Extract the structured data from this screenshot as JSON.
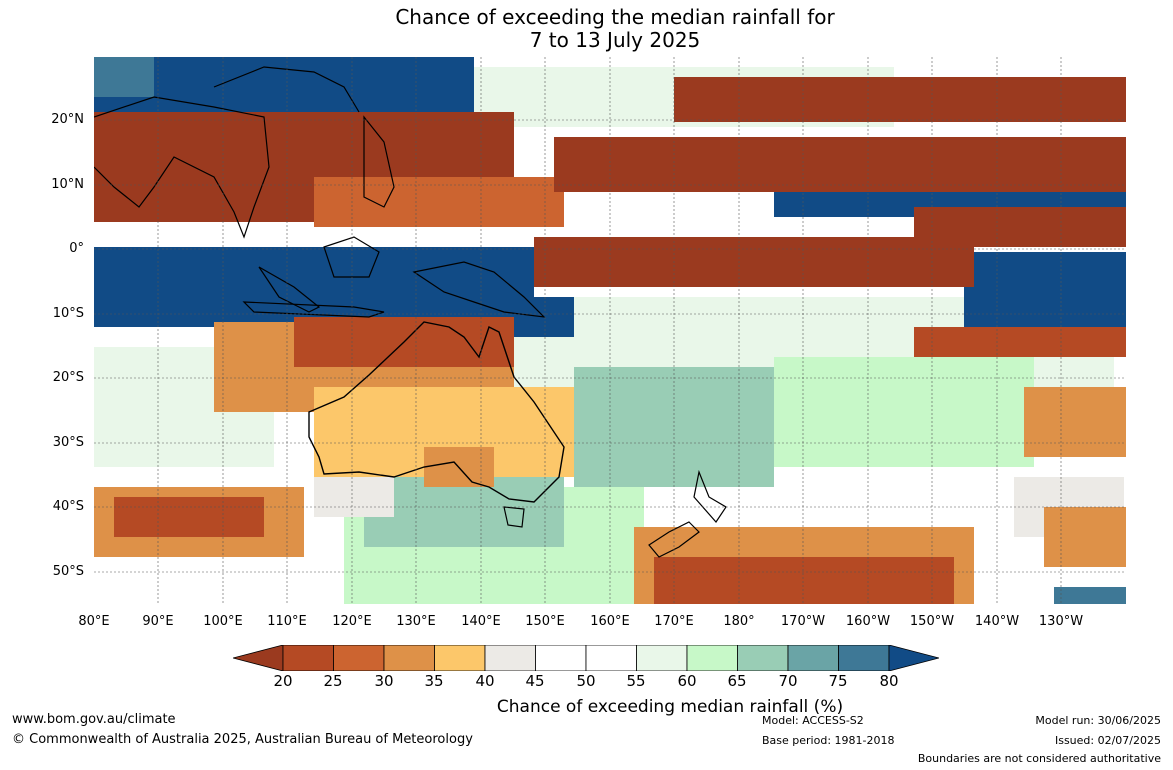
{
  "title": {
    "line1": "Chance of exceeding the median rainfall for",
    "line2": "7 to 13 July 2025"
  },
  "lat_labels": [
    "20°N",
    "10°N",
    "0°",
    "10°S",
    "20°S",
    "30°S",
    "40°S",
    "50°S"
  ],
  "lon_labels": [
    "80°E",
    "90°E",
    "100°E",
    "110°E",
    "120°E",
    "130°E",
    "140°E",
    "150°E",
    "160°E",
    "170°E",
    "180°",
    "170°W",
    "160°W",
    "150°W",
    "140°W",
    "130°W"
  ],
  "colorbar": {
    "ticks": [
      "20",
      "25",
      "30",
      "35",
      "40",
      "45",
      "50",
      "55",
      "60",
      "65",
      "70",
      "75",
      "80"
    ],
    "label": "Chance of exceeding median rainfall (%)",
    "colors": [
      "#9b3a1f",
      "#b54a24",
      "#cc6430",
      "#de9148",
      "#fcc76a",
      "#eceae6",
      "#ffffff",
      "#ffffff",
      "#e9f7e9",
      "#c7f8c8",
      "#99cdb5",
      "#6aa4a6",
      "#3e7896",
      "#114b86"
    ]
  },
  "footer": {
    "website": "www.bom.gov.au/climate",
    "copyright": "© Commonwealth of Australia 2025, Australian Bureau of Meteorology",
    "model": "Model: ACCESS-S2",
    "base_period": "Base period: 1981-2018",
    "model_run": "Model run: 30/06/2025",
    "issued": "Issued: 02/07/2025",
    "boundaries": "Boundaries are not considered authoritative"
  }
}
